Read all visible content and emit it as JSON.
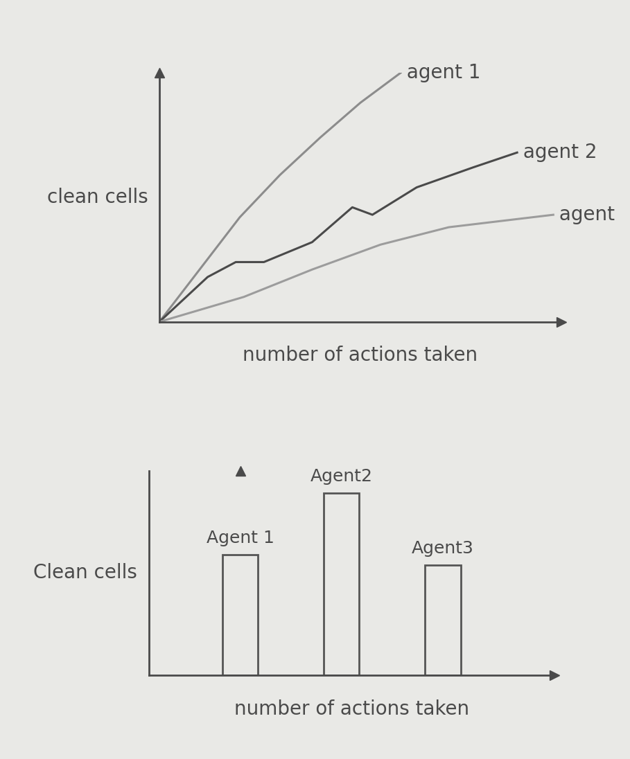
{
  "chart_data": [
    {
      "type": "line",
      "x_label": "number of actions taken",
      "y_label": "clean cells",
      "xlim": [
        0,
        10
      ],
      "ylim": [
        0,
        10
      ],
      "xticks": [],
      "yticks": [],
      "tick_labels": false,
      "series": [
        {
          "name": "agent 1",
          "color": "#8c8c8c",
          "x": [
            0,
            1,
            2,
            3,
            4,
            5,
            6
          ],
          "values": [
            0,
            2.1,
            4.2,
            5.9,
            7.4,
            8.8,
            10
          ]
        },
        {
          "name": "agent 2",
          "color": "#4a4a4a",
          "x": [
            0,
            1.2,
            1.9,
            2.6,
            3.8,
            4.8,
            5.3,
            6.4,
            7.8,
            8.9
          ],
          "values": [
            0,
            1.8,
            2.4,
            2.4,
            3.2,
            4.6,
            4.3,
            5.4,
            6.2,
            6.8
          ]
        },
        {
          "name": "agent",
          "color": "#9c9c9c",
          "x": [
            0,
            2.1,
            3.8,
            5.5,
            7.2,
            9.8
          ],
          "values": [
            0,
            1.0,
            2.1,
            3.1,
            3.8,
            4.3
          ]
        }
      ]
    },
    {
      "type": "bar",
      "x_label": "number of actions taken",
      "y_label": "Clean cells",
      "categories": [
        "Agent 1",
        "Agent2",
        "Agent3"
      ],
      "values": [
        5.9,
        8.9,
        5.4
      ],
      "color": "#555555",
      "xlim": [
        -0.9,
        3.1
      ],
      "ylim": [
        0,
        10
      ],
      "xticks": [],
      "yticks": [],
      "tick_labels": false
    }
  ]
}
